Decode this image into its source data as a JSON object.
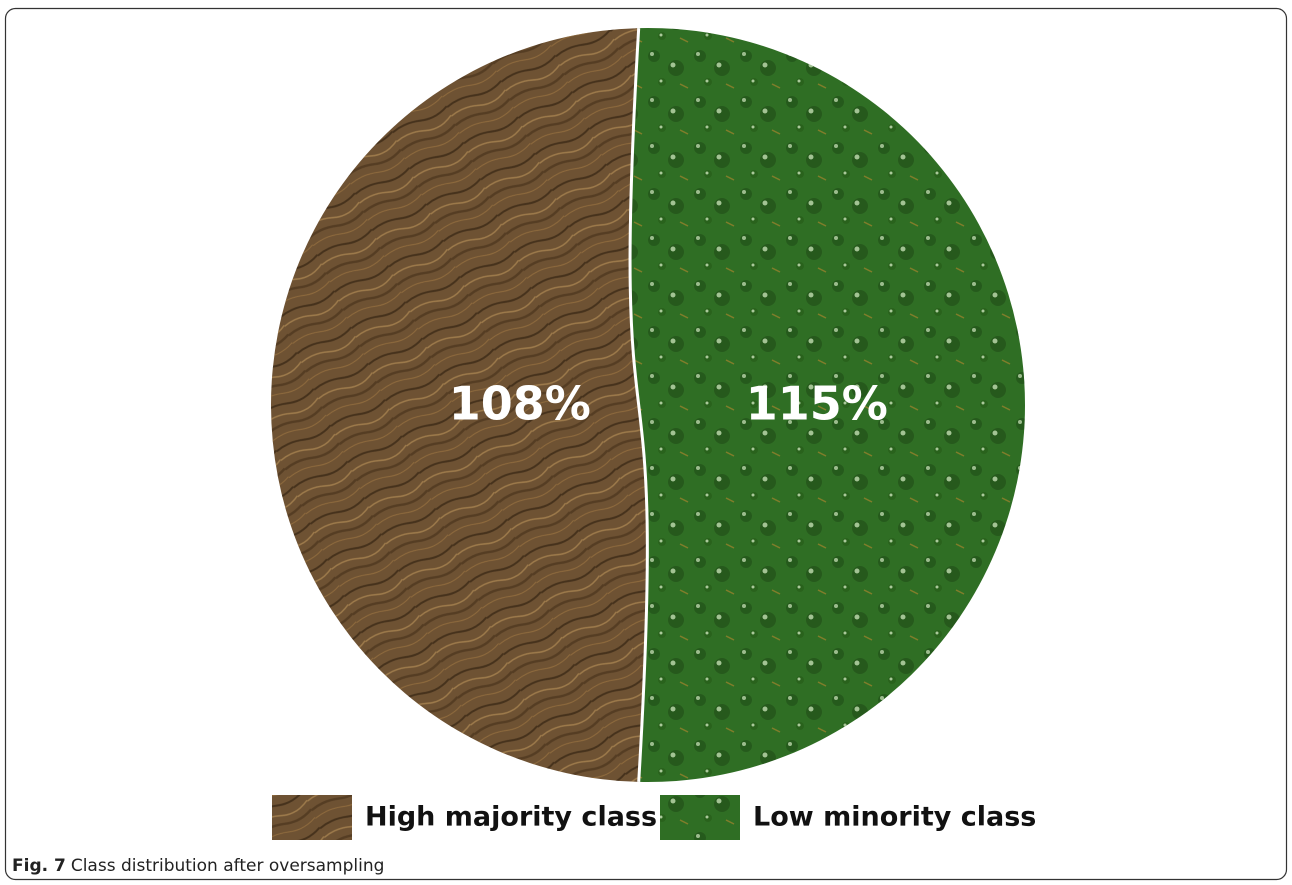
{
  "chart_data": {
    "type": "pie",
    "categories": [
      "High majority class",
      "Low minority class"
    ],
    "values": [
      108,
      115
    ],
    "value_labels": [
      "108%",
      "115%"
    ],
    "colors": [
      "#6e5233",
      "#2f6e24"
    ],
    "caption_label": "Fig. 7",
    "caption": "Class distribution after oversampling"
  }
}
